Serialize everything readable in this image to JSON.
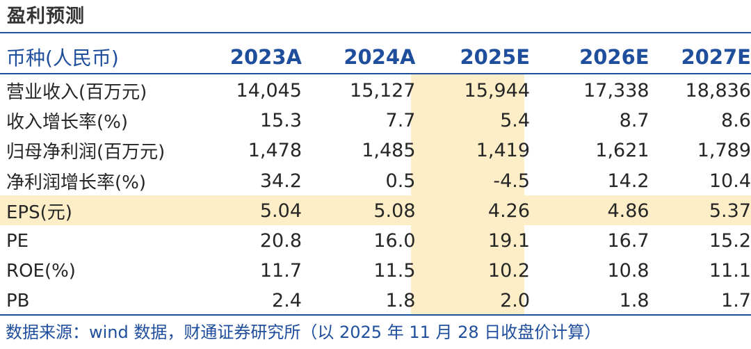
{
  "title": "盈利预测",
  "header": {
    "label": "币种(人民币)",
    "years": [
      "2023A",
      "2024A",
      "2025E",
      "2026E",
      "2027E"
    ]
  },
  "rows": [
    {
      "label": "营业收入(百万元)",
      "values": [
        "14,045",
        "15,127",
        "15,944",
        "17,338",
        "18,836"
      ]
    },
    {
      "label": "收入增长率(%)",
      "values": [
        "15.3",
        "7.7",
        "5.4",
        "8.7",
        "8.6"
      ]
    },
    {
      "label": "归母净利润(百万元)",
      "values": [
        "1,478",
        "1,485",
        "1,419",
        "1,621",
        "1,789"
      ]
    },
    {
      "label": "净利润增长率(%)",
      "values": [
        "34.2",
        "0.5",
        "-4.5",
        "14.2",
        "10.4"
      ]
    },
    {
      "label": "EPS(元)",
      "values": [
        "5.04",
        "5.08",
        "4.26",
        "4.86",
        "5.37"
      ]
    },
    {
      "label": "PE",
      "values": [
        "20.8",
        "16.0",
        "19.1",
        "16.7",
        "15.2"
      ]
    },
    {
      "label": "ROE(%)",
      "values": [
        "11.7",
        "11.5",
        "10.2",
        "10.8",
        "11.1"
      ]
    },
    {
      "label": "PB",
      "values": [
        "2.4",
        "1.8",
        "2.0",
        "1.8",
        "1.7"
      ]
    }
  ],
  "source": "数据来源：wind 数据，财通证券研究所（以 2025 年 11 月 28 日收盘价计算）",
  "colors": {
    "accent": "#1f4e9c",
    "highlight": "#fdeec8"
  }
}
